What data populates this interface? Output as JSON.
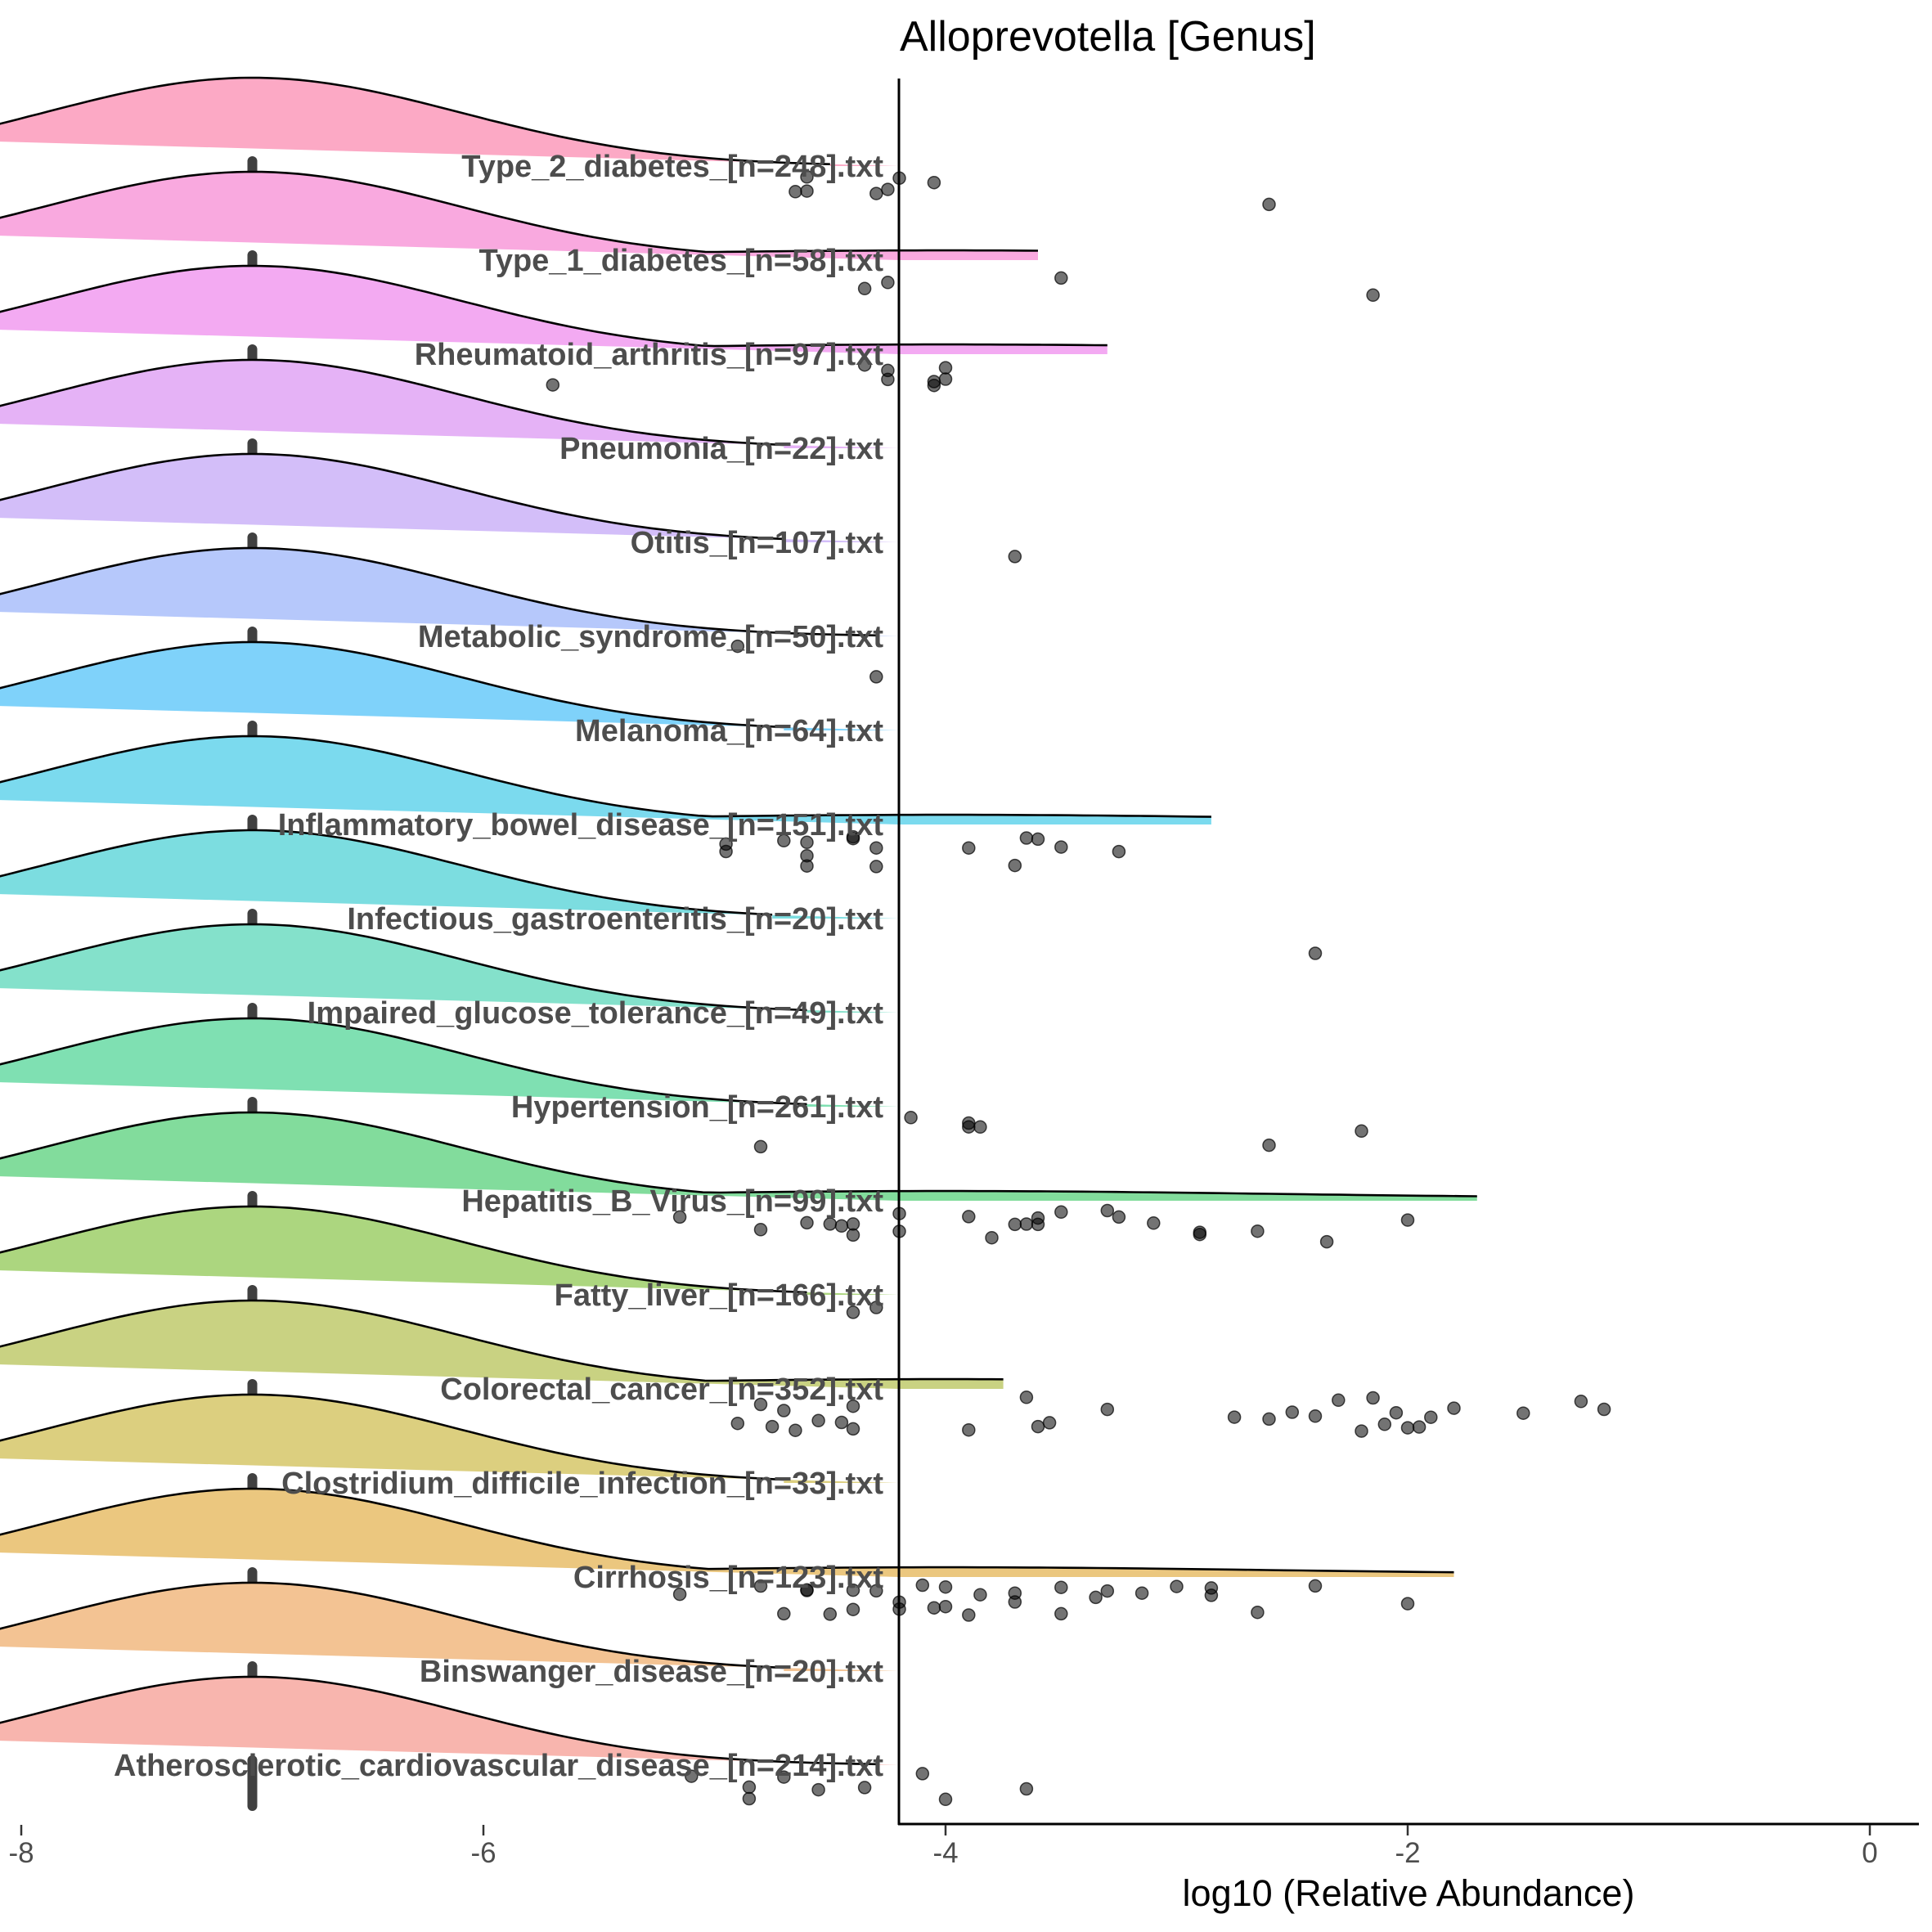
{
  "chart_data": {
    "type": "ridgeline",
    "title": "Alloprevotella [Genus]",
    "xlabel": "log10 (Relative Abundance)",
    "ylabel": "",
    "xlim": [
      -8.4,
      1.0
    ],
    "xticks": [
      -8,
      -6,
      -4,
      -2,
      0
    ],
    "xtick_labels": [
      "-8",
      "-6",
      "-4",
      "-2",
      "0"
    ],
    "zero_value": -7,
    "categories": [
      {
        "label": "Type_2_diabetes_[n=248].txt",
        "n": 248,
        "color": "#FCA9C5",
        "tail_end": -4.5,
        "tail_heavy": false,
        "points": [
          -4.6,
          -4.3,
          -4.2,
          -4.05,
          -4.25,
          -4.65,
          -4.6,
          -2.6
        ]
      },
      {
        "label": "Type_1_diabetes_[n=58].txt",
        "n": 58,
        "color": "#F9A9DF",
        "tail_end": -3.6,
        "tail_heavy": true,
        "points": [
          -4.35,
          -4.25,
          -3.5,
          -2.15
        ]
      },
      {
        "label": "Rheumatoid_arthritis_[n=97].txt",
        "n": 97,
        "color": "#F3AAF2",
        "tail_end": -3.3,
        "tail_heavy": true,
        "points": [
          -5.7,
          -4.35,
          -4.25,
          -4.25,
          -4.05,
          -4.0,
          -4.05,
          -4.0
        ]
      },
      {
        "label": "Pneumonia_[n=22].txt",
        "n": 22,
        "color": "#E5B2F6",
        "tail_end": -4.7,
        "tail_heavy": false,
        "points": []
      },
      {
        "label": "Otitis_[n=107].txt",
        "n": 107,
        "color": "#D3BEF9",
        "tail_end": -4.7,
        "tail_heavy": false,
        "points": [
          -3.7
        ]
      },
      {
        "label": "Metabolic_syndrome_[n=50].txt",
        "n": 50,
        "color": "#B6C8FB",
        "tail_end": -4.3,
        "tail_heavy": false,
        "points": [
          -4.9,
          -4.3
        ]
      },
      {
        "label": "Melanoma_[n=64].txt",
        "n": 64,
        "color": "#7FD2FA",
        "tail_end": -4.7,
        "tail_heavy": false,
        "points": []
      },
      {
        "label": "Inflammatory_bowel_disease_[n=151].txt",
        "n": 151,
        "color": "#7BDAEE",
        "tail_end": -2.85,
        "tail_heavy": true,
        "points": [
          -4.6,
          -4.4,
          -3.9,
          -3.7,
          -3.6,
          -3.5,
          -3.25,
          -4.6,
          -4.6,
          -4.4,
          -4.3,
          -4.3,
          -4.7,
          -4.95,
          -4.95,
          -3.65
        ]
      },
      {
        "label": "Infectious_gastroenteritis_[n=20].txt",
        "n": 20,
        "color": "#7CDDE0",
        "tail_end": -4.75,
        "tail_heavy": false,
        "points": [
          -2.4
        ]
      },
      {
        "label": "Impaired_glucose_tolerance_[n=49].txt",
        "n": 49,
        "color": "#84E1CB",
        "tail_end": -4.6,
        "tail_heavy": false,
        "points": []
      },
      {
        "label": "Hypertension_[n=261].txt",
        "n": 261,
        "color": "#7FE0B2",
        "tail_end": -4.6,
        "tail_heavy": false,
        "points": [
          -3.85,
          -3.9,
          -4.15,
          -4.8,
          -3.9,
          -2.6,
          -2.2
        ]
      },
      {
        "label": "Hepatitis_B_Virus_[n=99].txt",
        "n": 99,
        "color": "#82DC9C",
        "tail_end": -1.7,
        "tail_heavy": true,
        "points": [
          -5.15,
          -4.8,
          -4.6,
          -4.4,
          -4.2,
          -4.2,
          -3.9,
          -3.6,
          -3.5,
          -3.3,
          -3.1,
          -2.9,
          -2.65,
          -2.35,
          -2.0,
          -4.5,
          -4.45,
          -4.4,
          -3.8,
          -3.7,
          -3.65,
          -3.6,
          -3.25,
          -2.9
        ]
      },
      {
        "label": "Fatty_liver_[n=166].txt",
        "n": 166,
        "color": "#ACD67F",
        "tail_end": -4.6,
        "tail_heavy": false,
        "points": [
          -4.3,
          -4.4
        ]
      },
      {
        "label": "Colorectal_cancer_[n=352].txt",
        "n": 352,
        "color": "#C9D282",
        "tail_end": -3.75,
        "tail_heavy": true,
        "points": [
          -4.9,
          -4.75,
          -4.65,
          -4.4,
          -3.6,
          -3.55,
          -2.6,
          -2.4,
          -2.15,
          -1.8,
          -1.15,
          -4.8,
          -4.7,
          -4.55,
          -4.45,
          -4.4,
          -3.9,
          -3.65,
          -3.3,
          -2.75,
          -2.5,
          -2.3,
          -2.2,
          -2.05,
          -1.95,
          -1.9,
          -1.5,
          -1.25,
          -2.1,
          -2.0
        ]
      },
      {
        "label": "Clostridium_difficile_infection_[n=33].txt",
        "n": 33,
        "color": "#DCCF7F",
        "tail_end": -4.7,
        "tail_heavy": false,
        "points": []
      },
      {
        "label": "Cirrhosis_[n=123].txt",
        "n": 123,
        "color": "#EBC77F",
        "tail_end": -1.8,
        "tail_heavy": true,
        "points": [
          -5.15,
          -4.8,
          -4.6,
          -4.4,
          -4.2,
          -4.05,
          -3.9,
          -3.7,
          -3.5,
          -3.3,
          -3.0,
          -2.85,
          -2.4,
          -2.0,
          -4.7,
          -4.5,
          -4.4,
          -4.2,
          -4.0,
          -3.85,
          -3.7,
          -3.5,
          -3.35,
          -3.15,
          -2.85,
          -2.65,
          -4.6,
          -4.3,
          -4.1,
          -4.0
        ]
      },
      {
        "label": "Binswanger_disease_[n=20].txt",
        "n": 20,
        "color": "#F3C393",
        "tail_end": -4.7,
        "tail_heavy": false,
        "points": []
      },
      {
        "label": "Atherosclerotic_cardiovascular_disease_[n=214].txt",
        "n": 214,
        "color": "#F8B5AE",
        "tail_end": -4.3,
        "tail_heavy": false,
        "points": [
          -5.1,
          -4.85,
          -4.7,
          -4.55,
          -4.35,
          -4.1,
          -4.0,
          -3.65,
          -4.85
        ]
      }
    ]
  }
}
